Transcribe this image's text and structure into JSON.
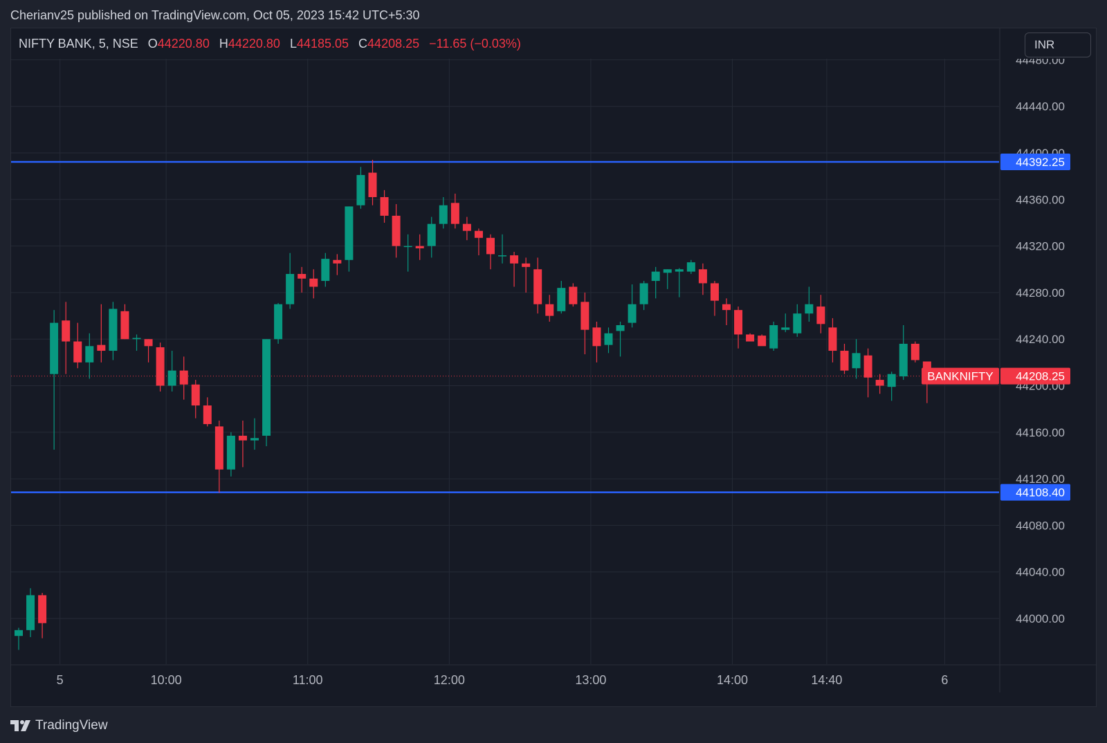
{
  "publisher_line": "Cherianv25 published on TradingView.com, Oct 05, 2023 15:42 UTC+5:30",
  "legend": {
    "symbol": "NIFTY BANK, 5, NSE",
    "o_label": "O",
    "open": "44220.80",
    "h_label": "H",
    "high": "44220.80",
    "l_label": "L",
    "low": "44185.05",
    "c_label": "C",
    "close": "44208.25",
    "change": "−11.65 (−0.03%)"
  },
  "currency": "INR",
  "brand": "TradingView",
  "chart_data": {
    "type": "candlestick",
    "symbol": "NIFTY BANK",
    "interval": "5",
    "exchange": "NSE",
    "ylim": [
      43975,
      44490
    ],
    "yticks": [
      44000,
      44040,
      44080,
      44120,
      44160,
      44200,
      44240,
      44280,
      44320,
      44360,
      44400,
      44440,
      44480
    ],
    "ytick_labels": [
      "44000.00",
      "44040.00",
      "44080.00",
      "44120.00",
      "44160.00",
      "44200.00",
      "44240.00",
      "44280.00",
      "44320.00",
      "44360.00",
      "44400.00",
      "44440.00",
      "44480.00"
    ],
    "xticks": [
      {
        "label": "5",
        "index": 3.5
      },
      {
        "label": "10:00",
        "index": 12.5
      },
      {
        "label": "11:00",
        "index": 24.5
      },
      {
        "label": "12:00",
        "index": 36.5
      },
      {
        "label": "13:00",
        "index": 48.5
      },
      {
        "label": "14:00",
        "index": 60.5
      },
      {
        "label": "14:40",
        "index": 68.5
      },
      {
        "label": "6",
        "index": 78.5
      }
    ],
    "grid": true,
    "horizontal_lines": [
      {
        "value": 44392.25,
        "label": "44392.25",
        "color": "#2962ff"
      },
      {
        "value": 44108.4,
        "label": "44108.40",
        "color": "#2962ff"
      }
    ],
    "last_price": {
      "value": 44208.25,
      "label": "44208.25",
      "symbol_label": "BANKNIFTY",
      "color": "#f23645"
    },
    "up_color": "#089981",
    "down_color": "#f23645",
    "candles": [
      [
        43985,
        43992,
        43973,
        43990
      ],
      [
        43990,
        44026,
        43984,
        44020
      ],
      [
        44020,
        44022,
        43983,
        43996
      ],
      [
        44210,
        44265,
        44145,
        44254
      ],
      [
        44256,
        44272,
        44210,
        44238
      ],
      [
        44238,
        44254,
        44215,
        44220
      ],
      [
        44220,
        44245,
        44206,
        44234
      ],
      [
        44235,
        44270,
        44220,
        44230
      ],
      [
        44230,
        44272,
        44222,
        44266
      ],
      [
        44264,
        44270,
        44240,
        44240
      ],
      [
        44240,
        44244,
        44230,
        44241
      ],
      [
        44240,
        44240,
        44220,
        44234
      ],
      [
        44233,
        44237,
        44195,
        44200
      ],
      [
        44200,
        44230,
        44195,
        44213
      ],
      [
        44213,
        44225,
        44188,
        44201
      ],
      [
        44201,
        44205,
        44172,
        44183
      ],
      [
        44183,
        44190,
        44165,
        44167
      ],
      [
        44165,
        44170,
        44108,
        44128
      ],
      [
        44128,
        44160,
        44122,
        44157
      ],
      [
        44157,
        44170,
        44130,
        44153
      ],
      [
        44153,
        44172,
        44145,
        44155
      ],
      [
        44157,
        44240,
        44148,
        44240
      ],
      [
        44240,
        44271,
        44236,
        44270
      ],
      [
        44270,
        44314,
        44266,
        44296
      ],
      [
        44296,
        44302,
        44280,
        44292
      ],
      [
        44292,
        44300,
        44275,
        44285
      ],
      [
        44290,
        44314,
        44285,
        44309
      ],
      [
        44308,
        44313,
        44295,
        44305
      ],
      [
        44308,
        44354,
        44298,
        44354
      ],
      [
        44355,
        44388,
        44352,
        44381
      ],
      [
        44383,
        44394,
        44355,
        44362
      ],
      [
        44362,
        44368,
        44340,
        44346
      ],
      [
        44346,
        44356,
        44310,
        44320
      ],
      [
        44320,
        44330,
        44298,
        44320
      ],
      [
        44320,
        44330,
        44308,
        44318
      ],
      [
        44320,
        44345,
        44310,
        44339
      ],
      [
        44339,
        44362,
        44335,
        44355
      ],
      [
        44357,
        44365,
        44335,
        44339
      ],
      [
        44339,
        44345,
        44325,
        44333
      ],
      [
        44333,
        44335,
        44312,
        44327
      ],
      [
        44327,
        44330,
        44300,
        44313
      ],
      [
        44312,
        44330,
        44305,
        44312
      ],
      [
        44312,
        44315,
        44285,
        44305
      ],
      [
        44305,
        44310,
        44280,
        44302
      ],
      [
        44300,
        44310,
        44262,
        44270
      ],
      [
        44270,
        44278,
        44255,
        44260
      ],
      [
        44264,
        44290,
        44262,
        44284
      ],
      [
        44285,
        44288,
        44268,
        44270
      ],
      [
        44272,
        44280,
        44227,
        44248
      ],
      [
        44250,
        44255,
        44220,
        44234
      ],
      [
        44235,
        44250,
        44228,
        44245
      ],
      [
        44247,
        44255,
        44225,
        44252
      ],
      [
        44254,
        44287,
        44250,
        44270
      ],
      [
        44270,
        44290,
        44265,
        44288
      ],
      [
        44290,
        44302,
        44275,
        44298
      ],
      [
        44297,
        44300,
        44283,
        44300
      ],
      [
        44298,
        44301,
        44276,
        44300
      ],
      [
        44298,
        44308,
        44296,
        44306
      ],
      [
        44300,
        44305,
        44278,
        44288
      ],
      [
        44288,
        44290,
        44260,
        44273
      ],
      [
        44270,
        44275,
        44252,
        44265
      ],
      [
        44265,
        44268,
        44232,
        44244
      ],
      [
        44244,
        44245,
        44240,
        44238
      ],
      [
        44243,
        44244,
        44236,
        44234
      ],
      [
        44232,
        44255,
        44230,
        44252
      ],
      [
        44248,
        44262,
        44246,
        44250
      ],
      [
        44245,
        44270,
        44242,
        44262
      ],
      [
        44262,
        44285,
        44255,
        44270
      ],
      [
        44268,
        44278,
        44245,
        44253
      ],
      [
        44250,
        44258,
        44220,
        44230
      ],
      [
        44230,
        44236,
        44210,
        44213
      ],
      [
        44215,
        44240,
        44206,
        44228
      ],
      [
        44226,
        44232,
        44190,
        44207
      ],
      [
        44205,
        44210,
        44193,
        44200
      ],
      [
        44199,
        44212,
        44187,
        44210
      ],
      [
        44208,
        44252,
        44205,
        44236
      ],
      [
        44236,
        44238,
        44220,
        44222
      ],
      [
        44220.8,
        44220.8,
        44185.05,
        44208.25
      ]
    ]
  }
}
